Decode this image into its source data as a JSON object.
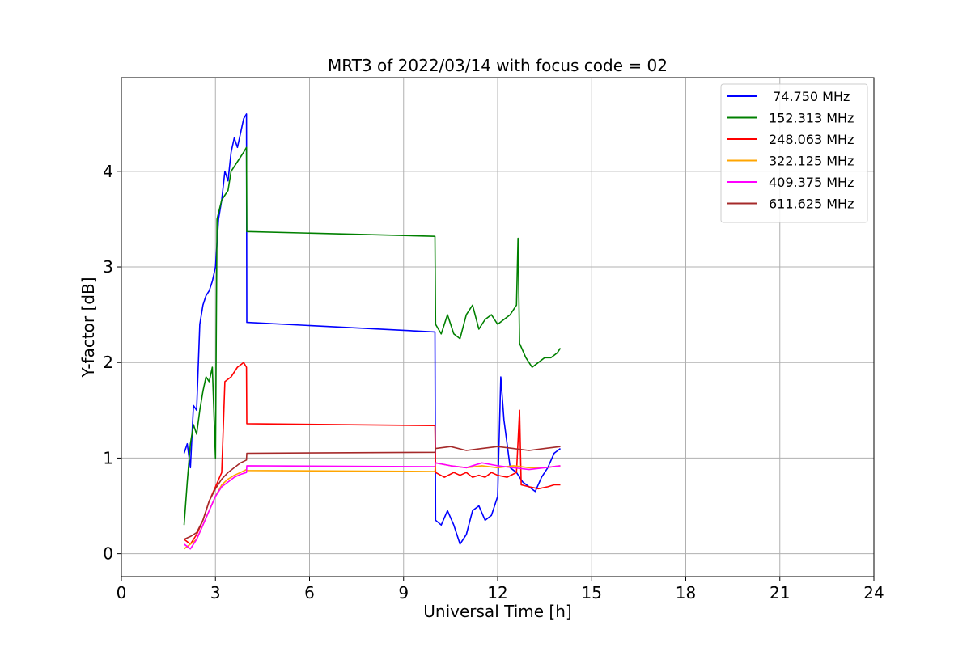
{
  "chart_data": {
    "type": "line",
    "title": "MRT3 of 2022/03/14 with focus code = 02",
    "xlabel": "Universal Time [h]",
    "ylabel": "Y-factor [dB]",
    "xlim": [
      0,
      24
    ],
    "ylim": [
      -0.24,
      4.98
    ],
    "xticks": [
      0,
      3,
      6,
      9,
      12,
      15,
      18,
      21,
      24
    ],
    "yticks": [
      0,
      1,
      2,
      3,
      4
    ],
    "grid": true,
    "legend": "top-right",
    "series": [
      {
        "name": " 74.750 MHz",
        "color": "#0000ff",
        "points": [
          [
            2.0,
            1.05
          ],
          [
            2.1,
            1.15
          ],
          [
            2.2,
            0.9
          ],
          [
            2.3,
            1.55
          ],
          [
            2.4,
            1.5
          ],
          [
            2.5,
            2.4
          ],
          [
            2.6,
            2.6
          ],
          [
            2.7,
            2.7
          ],
          [
            2.8,
            2.75
          ],
          [
            2.9,
            2.85
          ],
          [
            3.0,
            3.0
          ],
          [
            3.1,
            3.5
          ],
          [
            3.2,
            3.7
          ],
          [
            3.3,
            4.0
          ],
          [
            3.4,
            3.9
          ],
          [
            3.5,
            4.2
          ],
          [
            3.6,
            4.35
          ],
          [
            3.7,
            4.25
          ],
          [
            3.8,
            4.4
          ],
          [
            3.9,
            4.55
          ],
          [
            3.99,
            4.6
          ],
          [
            4.0,
            2.42
          ],
          [
            10.0,
            2.32
          ],
          [
            10.02,
            0.35
          ],
          [
            10.2,
            0.3
          ],
          [
            10.4,
            0.45
          ],
          [
            10.6,
            0.3
          ],
          [
            10.8,
            0.1
          ],
          [
            11.0,
            0.2
          ],
          [
            11.2,
            0.45
          ],
          [
            11.4,
            0.5
          ],
          [
            11.6,
            0.35
          ],
          [
            11.8,
            0.4
          ],
          [
            12.0,
            0.6
          ],
          [
            12.1,
            1.85
          ],
          [
            12.2,
            1.4
          ],
          [
            12.4,
            0.9
          ],
          [
            12.6,
            0.85
          ],
          [
            12.8,
            0.75
          ],
          [
            13.0,
            0.7
          ],
          [
            13.2,
            0.65
          ],
          [
            13.4,
            0.8
          ],
          [
            13.6,
            0.9
          ],
          [
            13.8,
            1.05
          ],
          [
            14.0,
            1.1
          ]
        ]
      },
      {
        "name": "152.313 MHz",
        "color": "#008000",
        "points": [
          [
            2.0,
            0.3
          ],
          [
            2.1,
            0.75
          ],
          [
            2.2,
            1.15
          ],
          [
            2.3,
            1.35
          ],
          [
            2.4,
            1.25
          ],
          [
            2.5,
            1.5
          ],
          [
            2.6,
            1.7
          ],
          [
            2.7,
            1.85
          ],
          [
            2.8,
            1.8
          ],
          [
            2.9,
            1.95
          ],
          [
            3.0,
            1.0
          ],
          [
            3.05,
            3.5
          ],
          [
            3.2,
            3.7
          ],
          [
            3.4,
            3.8
          ],
          [
            3.5,
            4.0
          ],
          [
            3.7,
            4.1
          ],
          [
            3.9,
            4.2
          ],
          [
            3.99,
            4.25
          ],
          [
            4.0,
            3.37
          ],
          [
            10.0,
            3.32
          ],
          [
            10.02,
            2.4
          ],
          [
            10.2,
            2.3
          ],
          [
            10.4,
            2.5
          ],
          [
            10.6,
            2.3
          ],
          [
            10.8,
            2.25
          ],
          [
            11.0,
            2.5
          ],
          [
            11.2,
            2.6
          ],
          [
            11.4,
            2.35
          ],
          [
            11.6,
            2.45
          ],
          [
            11.8,
            2.5
          ],
          [
            12.0,
            2.4
          ],
          [
            12.2,
            2.45
          ],
          [
            12.4,
            2.5
          ],
          [
            12.6,
            2.6
          ],
          [
            12.65,
            3.3
          ],
          [
            12.7,
            2.2
          ],
          [
            12.9,
            2.05
          ],
          [
            13.1,
            1.95
          ],
          [
            13.3,
            2.0
          ],
          [
            13.5,
            2.05
          ],
          [
            13.7,
            2.05
          ],
          [
            13.9,
            2.1
          ],
          [
            14.0,
            2.15
          ]
        ]
      },
      {
        "name": "248.063 MHz",
        "color": "#ff0000",
        "points": [
          [
            2.0,
            0.15
          ],
          [
            2.2,
            0.1
          ],
          [
            2.4,
            0.2
          ],
          [
            2.6,
            0.35
          ],
          [
            2.8,
            0.55
          ],
          [
            3.0,
            0.7
          ],
          [
            3.2,
            0.85
          ],
          [
            3.3,
            1.8
          ],
          [
            3.5,
            1.85
          ],
          [
            3.7,
            1.95
          ],
          [
            3.9,
            2.0
          ],
          [
            3.99,
            1.95
          ],
          [
            4.0,
            1.36
          ],
          [
            10.0,
            1.34
          ],
          [
            10.02,
            0.85
          ],
          [
            10.3,
            0.8
          ],
          [
            10.6,
            0.85
          ],
          [
            10.8,
            0.82
          ],
          [
            11.0,
            0.85
          ],
          [
            11.2,
            0.8
          ],
          [
            11.4,
            0.82
          ],
          [
            11.6,
            0.8
          ],
          [
            11.8,
            0.85
          ],
          [
            12.0,
            0.82
          ],
          [
            12.3,
            0.8
          ],
          [
            12.6,
            0.85
          ],
          [
            12.7,
            1.5
          ],
          [
            12.75,
            0.72
          ],
          [
            13.0,
            0.7
          ],
          [
            13.3,
            0.68
          ],
          [
            13.6,
            0.7
          ],
          [
            13.8,
            0.72
          ],
          [
            14.0,
            0.72
          ]
        ]
      },
      {
        "name": "322.125 MHz",
        "color": "#ffa500",
        "points": [
          [
            2.0,
            0.05
          ],
          [
            2.2,
            0.1
          ],
          [
            2.4,
            0.15
          ],
          [
            2.6,
            0.3
          ],
          [
            2.8,
            0.45
          ],
          [
            3.0,
            0.6
          ],
          [
            3.2,
            0.72
          ],
          [
            3.4,
            0.78
          ],
          [
            3.6,
            0.82
          ],
          [
            3.8,
            0.85
          ],
          [
            3.99,
            0.88
          ],
          [
            4.0,
            0.87
          ],
          [
            10.0,
            0.86
          ],
          [
            10.02,
            0.95
          ],
          [
            10.5,
            0.92
          ],
          [
            11.0,
            0.9
          ],
          [
            11.5,
            0.92
          ],
          [
            12.0,
            0.9
          ],
          [
            12.5,
            0.92
          ],
          [
            13.0,
            0.9
          ],
          [
            13.5,
            0.9
          ],
          [
            14.0,
            0.92
          ]
        ]
      },
      {
        "name": "409.375 MHz",
        "color": "#ff00ff",
        "points": [
          [
            2.0,
            0.1
          ],
          [
            2.2,
            0.05
          ],
          [
            2.4,
            0.15
          ],
          [
            2.6,
            0.3
          ],
          [
            2.8,
            0.45
          ],
          [
            3.0,
            0.6
          ],
          [
            3.2,
            0.7
          ],
          [
            3.4,
            0.75
          ],
          [
            3.6,
            0.8
          ],
          [
            3.8,
            0.83
          ],
          [
            3.99,
            0.85
          ],
          [
            4.0,
            0.92
          ],
          [
            10.0,
            0.91
          ],
          [
            10.02,
            0.95
          ],
          [
            10.5,
            0.92
          ],
          [
            11.0,
            0.9
          ],
          [
            11.5,
            0.95
          ],
          [
            12.0,
            0.92
          ],
          [
            12.5,
            0.9
          ],
          [
            13.0,
            0.88
          ],
          [
            13.5,
            0.9
          ],
          [
            14.0,
            0.92
          ]
        ]
      },
      {
        "name": "611.625 MHz",
        "color": "#a52a2a",
        "points": [
          [
            2.0,
            0.15
          ],
          [
            2.2,
            0.18
          ],
          [
            2.4,
            0.22
          ],
          [
            2.6,
            0.35
          ],
          [
            2.8,
            0.55
          ],
          [
            3.0,
            0.68
          ],
          [
            3.2,
            0.78
          ],
          [
            3.4,
            0.85
          ],
          [
            3.6,
            0.9
          ],
          [
            3.8,
            0.95
          ],
          [
            3.99,
            0.98
          ],
          [
            4.0,
            1.05
          ],
          [
            10.0,
            1.06
          ],
          [
            10.02,
            1.1
          ],
          [
            10.5,
            1.12
          ],
          [
            11.0,
            1.08
          ],
          [
            11.5,
            1.1
          ],
          [
            12.0,
            1.12
          ],
          [
            12.5,
            1.1
          ],
          [
            13.0,
            1.08
          ],
          [
            13.5,
            1.1
          ],
          [
            14.0,
            1.12
          ]
        ]
      }
    ]
  }
}
